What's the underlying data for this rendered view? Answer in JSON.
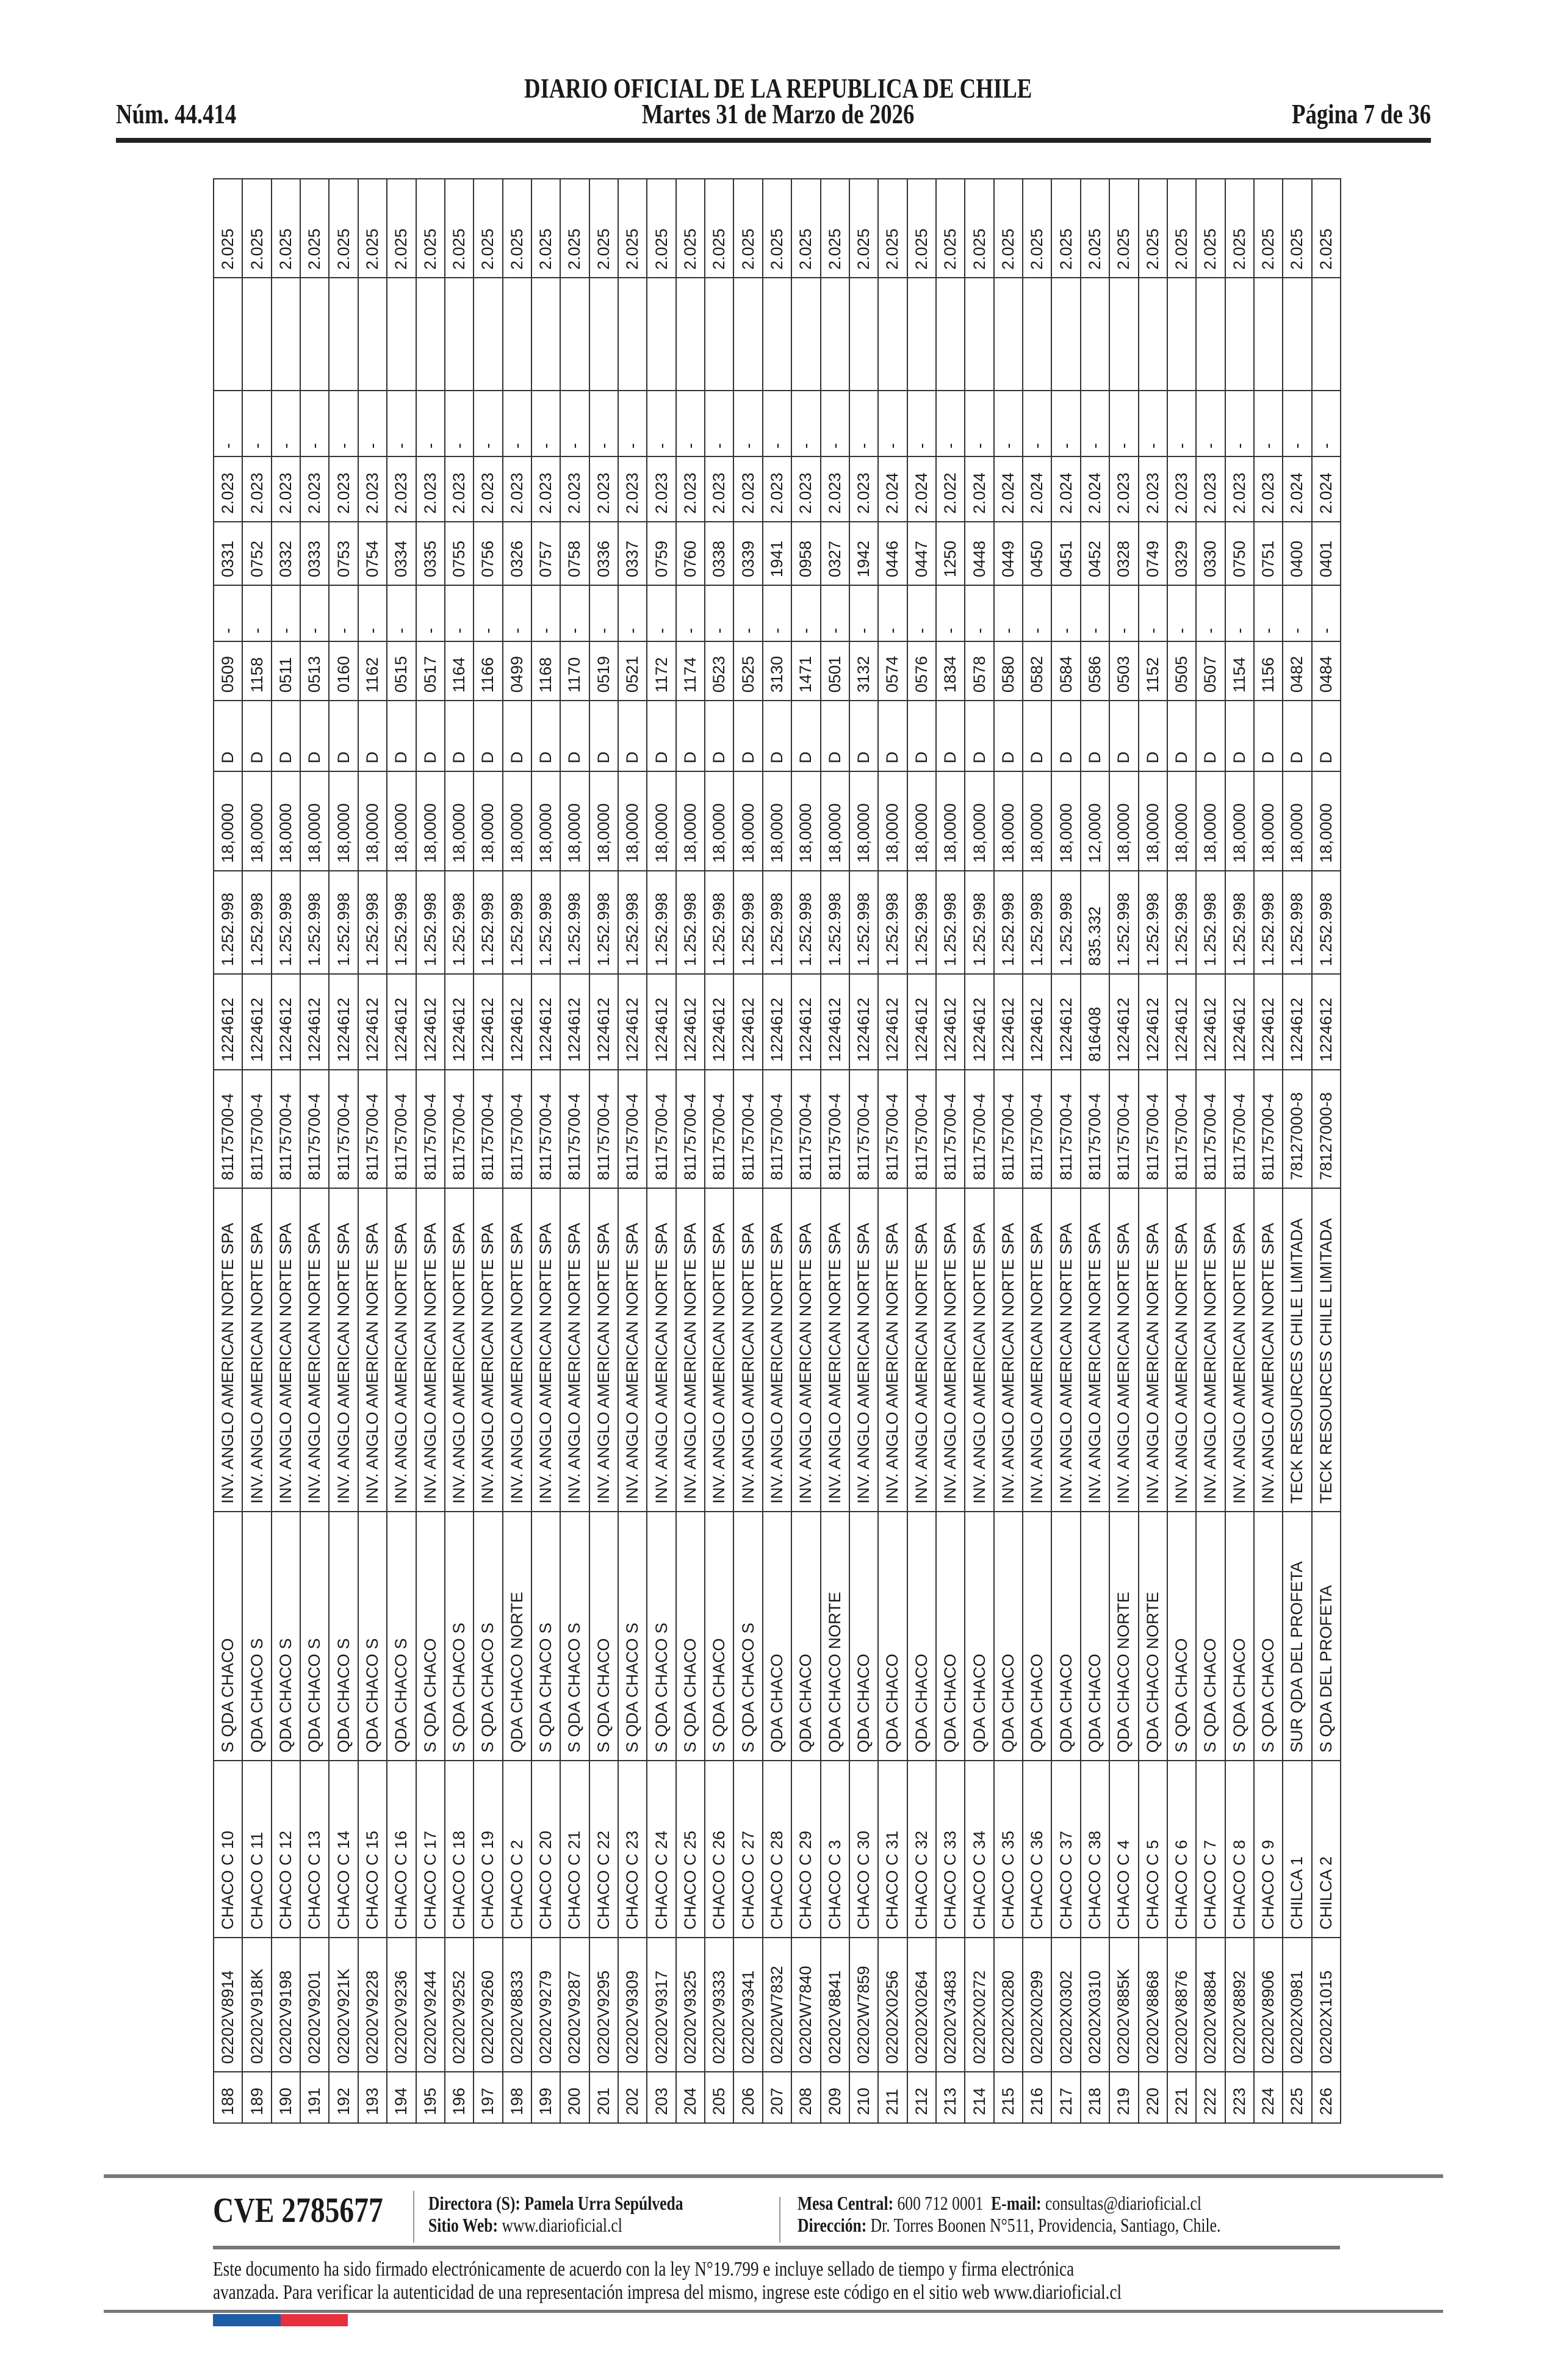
{
  "header": {
    "title": "DIARIO OFICIAL DE LA REPUBLICA DE CHILE",
    "issue_number": "Núm. 44.414",
    "date": "Martes 31 de Marzo de 2026",
    "page": "Página 7 de 36"
  },
  "table": {
    "rows": [
      [
        "188",
        "02202V8914",
        "CHACO C 10",
        "S QDA CHACO",
        "INV. ANGLO AMERICAN NORTE SPA",
        "81175700-4",
        "1224612",
        "1.252.998",
        "18,0000",
        "D",
        "0509",
        "-",
        "0331",
        "2.023",
        "-",
        "",
        "2.025"
      ],
      [
        "189",
        "02202V918K",
        "CHACO C 11",
        "QDA CHACO S",
        "INV. ANGLO AMERICAN NORTE SPA",
        "81175700-4",
        "1224612",
        "1.252.998",
        "18,0000",
        "D",
        "1158",
        "-",
        "0752",
        "2.023",
        "-",
        "",
        "2.025"
      ],
      [
        "190",
        "02202V9198",
        "CHACO C 12",
        "QDA CHACO S",
        "INV. ANGLO AMERICAN NORTE SPA",
        "81175700-4",
        "1224612",
        "1.252.998",
        "18,0000",
        "D",
        "0511",
        "-",
        "0332",
        "2.023",
        "-",
        "",
        "2.025"
      ],
      [
        "191",
        "02202V9201",
        "CHACO C 13",
        "QDA CHACO S",
        "INV. ANGLO AMERICAN NORTE SPA",
        "81175700-4",
        "1224612",
        "1.252.998",
        "18,0000",
        "D",
        "0513",
        "-",
        "0333",
        "2.023",
        "-",
        "",
        "2.025"
      ],
      [
        "192",
        "02202V921K",
        "CHACO C 14",
        "QDA CHACO S",
        "INV. ANGLO AMERICAN NORTE SPA",
        "81175700-4",
        "1224612",
        "1.252.998",
        "18,0000",
        "D",
        "0160",
        "-",
        "0753",
        "2.023",
        "-",
        "",
        "2.025"
      ],
      [
        "193",
        "02202V9228",
        "CHACO C 15",
        "QDA CHACO S",
        "INV. ANGLO AMERICAN NORTE SPA",
        "81175700-4",
        "1224612",
        "1.252.998",
        "18,0000",
        "D",
        "1162",
        "-",
        "0754",
        "2.023",
        "-",
        "",
        "2.025"
      ],
      [
        "194",
        "02202V9236",
        "CHACO C 16",
        "QDA CHACO S",
        "INV. ANGLO AMERICAN NORTE SPA",
        "81175700-4",
        "1224612",
        "1.252.998",
        "18,0000",
        "D",
        "0515",
        "-",
        "0334",
        "2.023",
        "-",
        "",
        "2.025"
      ],
      [
        "195",
        "02202V9244",
        "CHACO C 17",
        "S QDA CHACO",
        "INV. ANGLO AMERICAN NORTE SPA",
        "81175700-4",
        "1224612",
        "1.252.998",
        "18,0000",
        "D",
        "0517",
        "-",
        "0335",
        "2.023",
        "-",
        "",
        "2.025"
      ],
      [
        "196",
        "02202V9252",
        "CHACO C 18",
        "S QDA CHACO S",
        "INV. ANGLO AMERICAN NORTE SPA",
        "81175700-4",
        "1224612",
        "1.252.998",
        "18,0000",
        "D",
        "1164",
        "-",
        "0755",
        "2.023",
        "-",
        "",
        "2.025"
      ],
      [
        "197",
        "02202V9260",
        "CHACO C 19",
        "S QDA CHACO S",
        "INV. ANGLO AMERICAN NORTE SPA",
        "81175700-4",
        "1224612",
        "1.252.998",
        "18,0000",
        "D",
        "1166",
        "-",
        "0756",
        "2.023",
        "-",
        "",
        "2.025"
      ],
      [
        "198",
        "02202V8833",
        "CHACO C 2",
        "QDA CHACO NORTE",
        "INV. ANGLO AMERICAN NORTE SPA",
        "81175700-4",
        "1224612",
        "1.252.998",
        "18,0000",
        "D",
        "0499",
        "-",
        "0326",
        "2.023",
        "-",
        "",
        "2.025"
      ],
      [
        "199",
        "02202V9279",
        "CHACO C 20",
        "S QDA CHACO S",
        "INV. ANGLO AMERICAN NORTE SPA",
        "81175700-4",
        "1224612",
        "1.252.998",
        "18,0000",
        "D",
        "1168",
        "-",
        "0757",
        "2.023",
        "-",
        "",
        "2.025"
      ],
      [
        "200",
        "02202V9287",
        "CHACO C 21",
        "S QDA CHACO S",
        "INV. ANGLO AMERICAN NORTE SPA",
        "81175700-4",
        "1224612",
        "1.252.998",
        "18,0000",
        "D",
        "1170",
        "-",
        "0758",
        "2.023",
        "-",
        "",
        "2.025"
      ],
      [
        "201",
        "02202V9295",
        "CHACO C 22",
        "S QDA CHACO",
        "INV. ANGLO AMERICAN NORTE SPA",
        "81175700-4",
        "1224612",
        "1.252.998",
        "18,0000",
        "D",
        "0519",
        "-",
        "0336",
        "2.023",
        "-",
        "",
        "2.025"
      ],
      [
        "202",
        "02202V9309",
        "CHACO C 23",
        "S QDA CHACO S",
        "INV. ANGLO AMERICAN NORTE SPA",
        "81175700-4",
        "1224612",
        "1.252.998",
        "18,0000",
        "D",
        "0521",
        "-",
        "0337",
        "2.023",
        "-",
        "",
        "2.025"
      ],
      [
        "203",
        "02202V9317",
        "CHACO C 24",
        "S QDA CHACO S",
        "INV. ANGLO AMERICAN NORTE SPA",
        "81175700-4",
        "1224612",
        "1.252.998",
        "18,0000",
        "D",
        "1172",
        "-",
        "0759",
        "2.023",
        "-",
        "",
        "2.025"
      ],
      [
        "204",
        "02202V9325",
        "CHACO C 25",
        "S QDA CHACO",
        "INV. ANGLO AMERICAN NORTE SPA",
        "81175700-4",
        "1224612",
        "1.252.998",
        "18,0000",
        "D",
        "1174",
        "-",
        "0760",
        "2.023",
        "-",
        "",
        "2.025"
      ],
      [
        "205",
        "02202V9333",
        "CHACO C 26",
        "S QDA CHACO",
        "INV. ANGLO AMERICAN NORTE SPA",
        "81175700-4",
        "1224612",
        "1.252.998",
        "18,0000",
        "D",
        "0523",
        "-",
        "0338",
        "2.023",
        "-",
        "",
        "2.025"
      ],
      [
        "206",
        "02202V9341",
        "CHACO C 27",
        "S QDA CHACO S",
        "INV. ANGLO AMERICAN NORTE SPA",
        "81175700-4",
        "1224612",
        "1.252.998",
        "18,0000",
        "D",
        "0525",
        "-",
        "0339",
        "2.023",
        "-",
        "",
        "2.025"
      ],
      [
        "207",
        "02202W7832",
        "CHACO C 28",
        "QDA CHACO",
        "INV. ANGLO AMERICAN NORTE SPA",
        "81175700-4",
        "1224612",
        "1.252.998",
        "18,0000",
        "D",
        "3130",
        "-",
        "1941",
        "2.023",
        "-",
        "",
        "2.025"
      ],
      [
        "208",
        "02202W7840",
        "CHACO C 29",
        "QDA CHACO",
        "INV. ANGLO AMERICAN NORTE SPA",
        "81175700-4",
        "1224612",
        "1.252.998",
        "18,0000",
        "D",
        "1471",
        "-",
        "0958",
        "2.023",
        "-",
        "",
        "2.025"
      ],
      [
        "209",
        "02202V8841",
        "CHACO C 3",
        "QDA CHACO NORTE",
        "INV. ANGLO AMERICAN NORTE SPA",
        "81175700-4",
        "1224612",
        "1.252.998",
        "18,0000",
        "D",
        "0501",
        "-",
        "0327",
        "2.023",
        "-",
        "",
        "2.025"
      ],
      [
        "210",
        "02202W7859",
        "CHACO C 30",
        "QDA CHACO",
        "INV. ANGLO AMERICAN NORTE SPA",
        "81175700-4",
        "1224612",
        "1.252.998",
        "18,0000",
        "D",
        "3132",
        "-",
        "1942",
        "2.023",
        "-",
        "",
        "2.025"
      ],
      [
        "211",
        "02202X0256",
        "CHACO C 31",
        "QDA CHACO",
        "INV. ANGLO AMERICAN NORTE SPA",
        "81175700-4",
        "1224612",
        "1.252.998",
        "18,0000",
        "D",
        "0574",
        "-",
        "0446",
        "2.024",
        "-",
        "",
        "2.025"
      ],
      [
        "212",
        "02202X0264",
        "CHACO C 32",
        "QDA CHACO",
        "INV. ANGLO AMERICAN NORTE SPA",
        "81175700-4",
        "1224612",
        "1.252.998",
        "18,0000",
        "D",
        "0576",
        "-",
        "0447",
        "2.024",
        "-",
        "",
        "2.025"
      ],
      [
        "213",
        "02202V3483",
        "CHACO C 33",
        "QDA CHACO",
        "INV. ANGLO AMERICAN NORTE SPA",
        "81175700-4",
        "1224612",
        "1.252.998",
        "18,0000",
        "D",
        "1834",
        "-",
        "1250",
        "2.022",
        "-",
        "",
        "2.025"
      ],
      [
        "214",
        "02202X0272",
        "CHACO C 34",
        "QDA CHACO",
        "INV. ANGLO AMERICAN NORTE SPA",
        "81175700-4",
        "1224612",
        "1.252.998",
        "18,0000",
        "D",
        "0578",
        "-",
        "0448",
        "2.024",
        "-",
        "",
        "2.025"
      ],
      [
        "215",
        "02202X0280",
        "CHACO C 35",
        "QDA CHACO",
        "INV. ANGLO AMERICAN NORTE SPA",
        "81175700-4",
        "1224612",
        "1.252.998",
        "18,0000",
        "D",
        "0580",
        "-",
        "0449",
        "2.024",
        "-",
        "",
        "2.025"
      ],
      [
        "216",
        "02202X0299",
        "CHACO C 36",
        "QDA CHACO",
        "INV. ANGLO AMERICAN NORTE SPA",
        "81175700-4",
        "1224612",
        "1.252.998",
        "18,0000",
        "D",
        "0582",
        "-",
        "0450",
        "2.024",
        "-",
        "",
        "2.025"
      ],
      [
        "217",
        "02202X0302",
        "CHACO C 37",
        "QDA CHACO",
        "INV. ANGLO AMERICAN NORTE SPA",
        "81175700-4",
        "1224612",
        "1.252.998",
        "18,0000",
        "D",
        "0584",
        "-",
        "0451",
        "2.024",
        "-",
        "",
        "2.025"
      ],
      [
        "218",
        "02202X0310",
        "CHACO C 38",
        "QDA CHACO",
        "INV. ANGLO AMERICAN NORTE SPA",
        "81175700-4",
        "816408",
        "835.332",
        "12,0000",
        "D",
        "0586",
        "-",
        "0452",
        "2.024",
        "-",
        "",
        "2.025"
      ],
      [
        "219",
        "02202V885K",
        "CHACO C 4",
        "QDA CHACO NORTE",
        "INV. ANGLO AMERICAN NORTE SPA",
        "81175700-4",
        "1224612",
        "1.252.998",
        "18,0000",
        "D",
        "0503",
        "-",
        "0328",
        "2.023",
        "-",
        "",
        "2.025"
      ],
      [
        "220",
        "02202V8868",
        "CHACO C 5",
        "QDA CHACO NORTE",
        "INV. ANGLO AMERICAN NORTE SPA",
        "81175700-4",
        "1224612",
        "1.252.998",
        "18,0000",
        "D",
        "1152",
        "-",
        "0749",
        "2.023",
        "-",
        "",
        "2.025"
      ],
      [
        "221",
        "02202V8876",
        "CHACO C 6",
        "S QDA CHACO",
        "INV. ANGLO AMERICAN NORTE SPA",
        "81175700-4",
        "1224612",
        "1.252.998",
        "18,0000",
        "D",
        "0505",
        "-",
        "0329",
        "2.023",
        "-",
        "",
        "2.025"
      ],
      [
        "222",
        "02202V8884",
        "CHACO C 7",
        "S QDA CHACO",
        "INV. ANGLO AMERICAN NORTE SPA",
        "81175700-4",
        "1224612",
        "1.252.998",
        "18,0000",
        "D",
        "0507",
        "-",
        "0330",
        "2.023",
        "-",
        "",
        "2.025"
      ],
      [
        "223",
        "02202V8892",
        "CHACO C 8",
        "S QDA CHACO",
        "INV. ANGLO AMERICAN NORTE SPA",
        "81175700-4",
        "1224612",
        "1.252.998",
        "18,0000",
        "D",
        "1154",
        "-",
        "0750",
        "2.023",
        "-",
        "",
        "2.025"
      ],
      [
        "224",
        "02202V8906",
        "CHACO C 9",
        "S QDA CHACO",
        "INV. ANGLO AMERICAN NORTE SPA",
        "81175700-4",
        "1224612",
        "1.252.998",
        "18,0000",
        "D",
        "1156",
        "-",
        "0751",
        "2.023",
        "-",
        "",
        "2.025"
      ],
      [
        "225",
        "02202X0981",
        "CHILCA 1",
        "SUR QDA DEL PROFETA",
        "TECK RESOURCES CHILE LIMITADA",
        "78127000-8",
        "1224612",
        "1.252.998",
        "18,0000",
        "D",
        "0482",
        "-",
        "0400",
        "2.024",
        "-",
        "",
        "2.025"
      ],
      [
        "226",
        "02202X1015",
        "CHILCA 2",
        "S QDA DEL PROFETA",
        "TECK RESOURCES CHILE LIMITADA",
        "78127000-8",
        "1224612",
        "1.252.998",
        "18,0000",
        "D",
        "0484",
        "-",
        "0401",
        "2.024",
        "-",
        "",
        "2.025"
      ]
    ]
  },
  "footer": {
    "cve": "CVE 2785677",
    "director_label": "Directora (S):",
    "director_name": "Pamela Urra Sepúlveda",
    "website_label": "Sitio Web:",
    "website": "www.diarioficial.cl",
    "phone_label": "Mesa Central:",
    "phone": "600 712 0001",
    "email_label": "E-mail:",
    "email": "consultas@diarioficial.cl",
    "address_label": "Dirección:",
    "address": "Dr. Torres Boonen N°511, Providencia, Santiago, Chile.",
    "notice_line1": "Este documento ha sido firmado electrónicamente de acuerdo con la ley N°19.799 e incluye sellado de tiempo y firma electrónica",
    "notice_line2": "avanzada. Para verificar la autenticidad de una representación impresa del mismo, ingrese este código en el sitio web www.diarioficial.cl",
    "flag_colors": [
      "#1f5ca8",
      "#e8303c"
    ]
  }
}
